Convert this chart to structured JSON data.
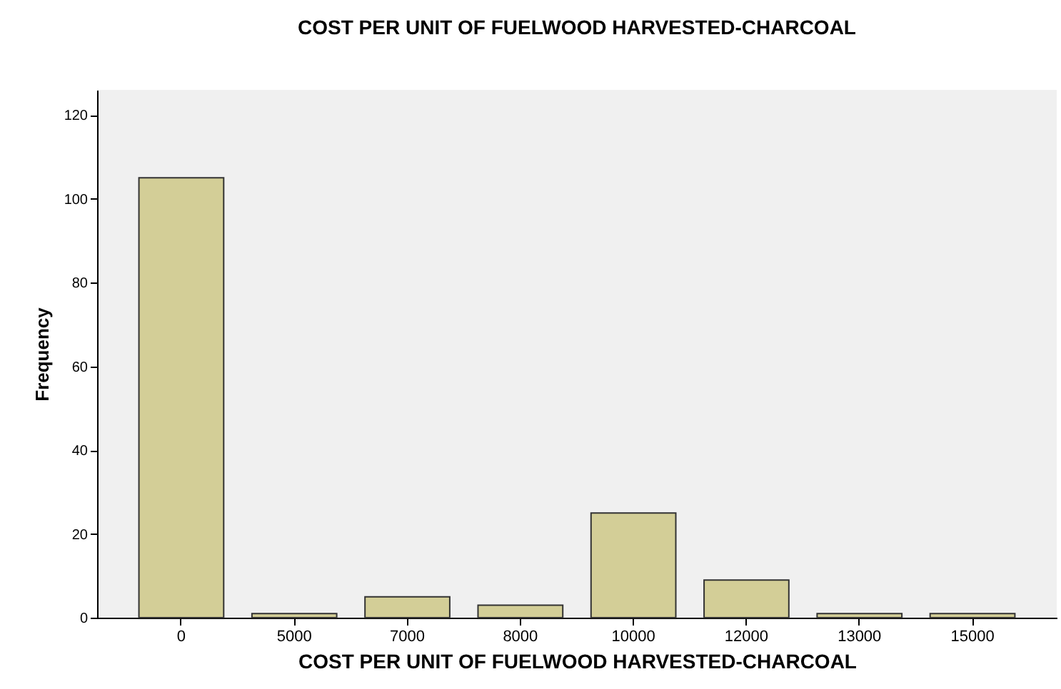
{
  "chart_data": {
    "type": "bar",
    "title": "COST PER UNIT OF FUELWOOD HARVESTED-CHARCOAL",
    "xlabel": "COST PER UNIT OF FUELWOOD HARVESTED-CHARCOAL",
    "ylabel": "Frequency",
    "categories": [
      "0",
      "5000",
      "7000",
      "8000",
      "10000",
      "12000",
      "13000",
      "15000"
    ],
    "values": [
      105,
      1,
      5,
      3,
      25,
      9,
      1,
      1
    ],
    "color": "#d3ce97",
    "ylim": [
      0,
      126
    ],
    "yticks": [
      0,
      20,
      40,
      60,
      80,
      100,
      120
    ],
    "grid": false
  }
}
